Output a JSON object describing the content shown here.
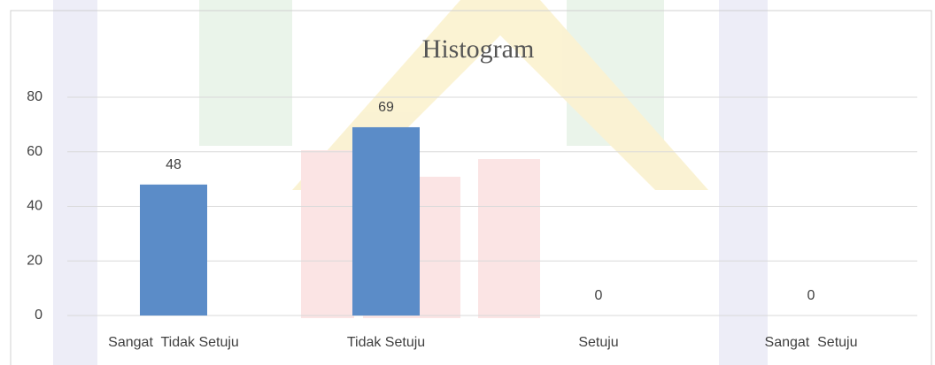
{
  "chart_data": {
    "type": "bar",
    "title": "Histogram",
    "categories": [
      "Sangat  Tidak Setuju",
      "Tidak Setuju",
      "Setuju",
      "Sangat  Setuju"
    ],
    "values": [
      48,
      69,
      0,
      0
    ],
    "color": "#5b8cc8",
    "ylim": [
      0,
      80
    ],
    "yticks": [
      0,
      20,
      40,
      60,
      80
    ],
    "grid": true
  }
}
